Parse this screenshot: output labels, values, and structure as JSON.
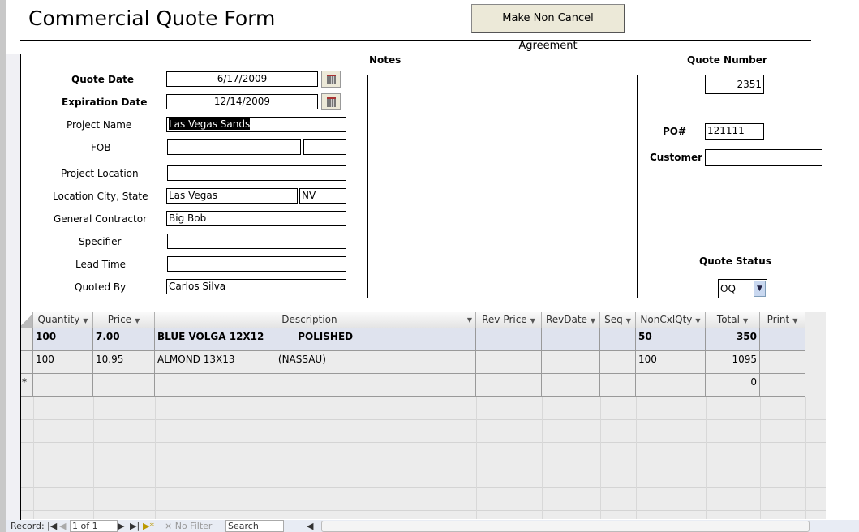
{
  "form": {
    "title": "Commercial Quote Form",
    "non_cancel_button": "Make Non Cancel Agreement"
  },
  "fields": {
    "quote_date": {
      "label": "Quote Date",
      "value": "6/17/2009"
    },
    "expiration_date": {
      "label": "Expiration Date",
      "value": "12/14/2009"
    },
    "project_name": {
      "label": "Project Name",
      "value": "Las Vegas Sands"
    },
    "fob": {
      "label": "FOB",
      "value": "",
      "value2": ""
    },
    "project_location": {
      "label": "Project Location",
      "value": ""
    },
    "location_city_state": {
      "label": "Location City, State",
      "city": "Las Vegas",
      "state": "NV"
    },
    "general_contractor": {
      "label": "General Contractor",
      "value": "Big Bob"
    },
    "specifier": {
      "label": "Specifier",
      "value": ""
    },
    "lead_time": {
      "label": "Lead Time",
      "value": ""
    },
    "quoted_by": {
      "label": "Quoted By",
      "value": "Carlos Silva"
    },
    "notes": {
      "label": "Notes",
      "value": ""
    },
    "quote_number": {
      "label": "Quote Number",
      "value": "2351"
    },
    "po": {
      "label": "PO#",
      "value": "121111"
    },
    "customer": {
      "label": "Customer",
      "value": ""
    },
    "quote_status": {
      "label": "Quote Status",
      "value": "OQ"
    }
  },
  "grid": {
    "columns": [
      "Quantity",
      "Price",
      "Description",
      "Rev-Price",
      "RevDate",
      "Seq",
      "NonCxlQty",
      "Total",
      "Print"
    ],
    "rows": [
      [
        "100",
        "7.00",
        "BLUE VOLGA 12X12          POLISHED",
        "",
        "",
        "",
        "50",
        "350",
        ""
      ],
      [
        "100",
        "10.95",
        "ALMOND 13X13              (NASSAU)",
        "",
        "",
        "",
        "100",
        "1095",
        ""
      ],
      [
        "",
        "",
        "",
        "",
        "",
        "",
        "",
        "0",
        ""
      ]
    ],
    "new_row_marker": "*"
  },
  "nav": {
    "record_label": "Record:",
    "position": "1 of 1",
    "filter": "No Filter",
    "search": "Search"
  }
}
